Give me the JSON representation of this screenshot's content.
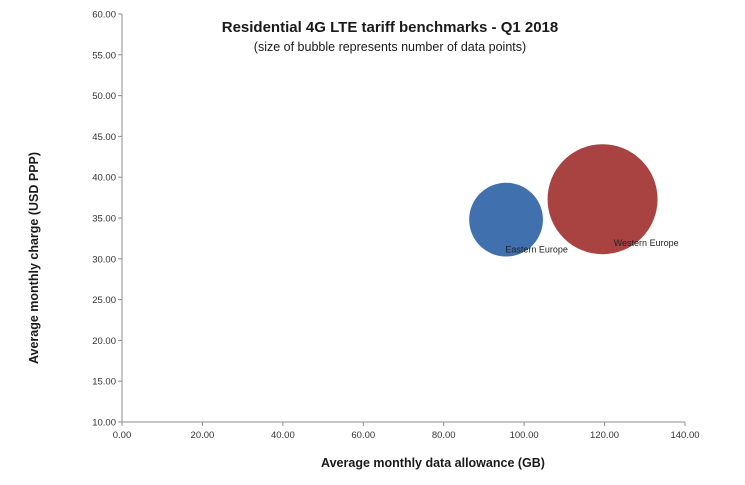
{
  "chart_data": {
    "type": "scatter",
    "title": "Residential 4G LTE tariff benchmarks - Q1 2018",
    "subtitle": "(size of bubble represents number of data points)",
    "xlabel": "Average monthly data allowance (GB)",
    "ylabel": "Average monthly charge (USD PPP)",
    "xlim": [
      0,
      140
    ],
    "ylim": [
      10,
      60
    ],
    "x_ticks": [
      "0.00",
      "20.00",
      "40.00",
      "60.00",
      "80.00",
      "100.00",
      "120.00",
      "140.00"
    ],
    "y_ticks": [
      "10.00",
      "15.00",
      "20.00",
      "25.00",
      "30.00",
      "35.00",
      "40.00",
      "45.00",
      "50.00",
      "55.00",
      "60.00"
    ],
    "series": [
      {
        "name": "Eastern Europe",
        "x": 95.5,
        "y": 34.8,
        "size": 0.45,
        "color": "#4170AE"
      },
      {
        "name": "Western Europe",
        "x": 119.5,
        "y": 37.3,
        "size": 1.0,
        "color": "#A84342"
      }
    ]
  }
}
